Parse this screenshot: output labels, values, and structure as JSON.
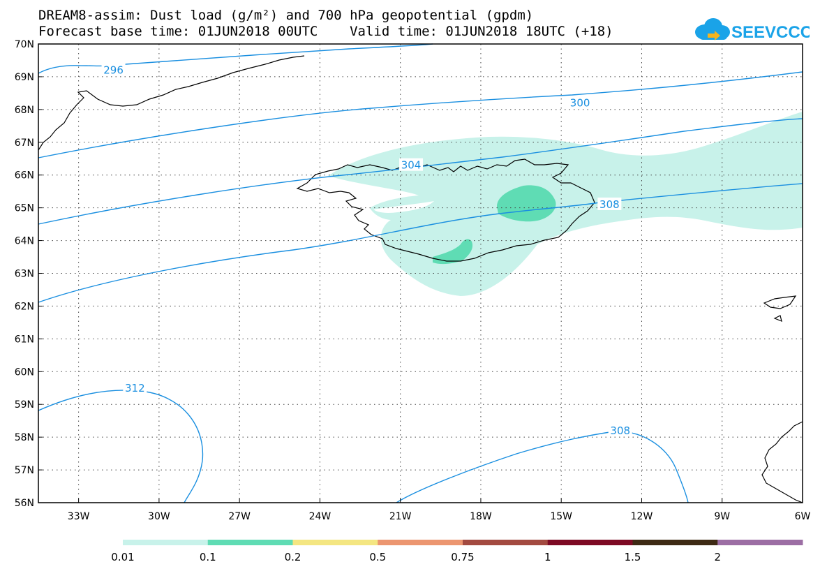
{
  "header": {
    "title_line1": "DREAM8-assim: Dust load (g/m²) and 700 hPa geopotential (gpdm)",
    "title_line2": "Forecast base time: 01JUN2018 00UTC    Valid time: 01JUN2018 18UTC (+18)"
  },
  "logo": {
    "text": "SEEVCCC",
    "color": "#1aa3e8"
  },
  "map": {
    "lon_range": [
      -34.5,
      -6
    ],
    "lat_range": [
      56,
      70
    ],
    "lon_ticks": [
      {
        "value": -33,
        "label": "33W"
      },
      {
        "value": -30,
        "label": "30W"
      },
      {
        "value": -27,
        "label": "27W"
      },
      {
        "value": -24,
        "label": "24W"
      },
      {
        "value": -21,
        "label": "21W"
      },
      {
        "value": -18,
        "label": "18W"
      },
      {
        "value": -15,
        "label": "15W"
      },
      {
        "value": -12,
        "label": "12W"
      },
      {
        "value": -9,
        "label": "9W"
      },
      {
        "value": -6,
        "label": "6W"
      }
    ],
    "lat_ticks": [
      {
        "value": 70,
        "label": "70N"
      },
      {
        "value": 69,
        "label": "69N"
      },
      {
        "value": 68,
        "label": "68N"
      },
      {
        "value": 67,
        "label": "67N"
      },
      {
        "value": 66,
        "label": "66N"
      },
      {
        "value": 65,
        "label": "65N"
      },
      {
        "value": 64,
        "label": "64N"
      },
      {
        "value": 63,
        "label": "63N"
      },
      {
        "value": 62,
        "label": "62N"
      },
      {
        "value": 61,
        "label": "61N"
      },
      {
        "value": 60,
        "label": "60N"
      },
      {
        "value": 59,
        "label": "59N"
      },
      {
        "value": 58,
        "label": "58N"
      },
      {
        "value": 57,
        "label": "57N"
      },
      {
        "value": 56,
        "label": "56N"
      }
    ],
    "contour_labels": [
      {
        "text": "296",
        "lon": -31.7,
        "lat": 69.2
      },
      {
        "text": "300",
        "lon": -14.3,
        "lat": 68.2
      },
      {
        "text": "304",
        "lon": -20.6,
        "lat": 66.3
      },
      {
        "text": "308",
        "lon": -13.2,
        "lat": 65.1
      },
      {
        "text": "312",
        "lon": -30.9,
        "lat": 59.5
      },
      {
        "text": "308",
        "lon": -12.8,
        "lat": 58.2
      }
    ],
    "contour_color": "#1a8fe0"
  },
  "colorbar": {
    "segments": [
      {
        "color": "#c8f2ea"
      },
      {
        "color": "#5fdcb4"
      },
      {
        "color": "#f4e682"
      },
      {
        "color": "#ec9670"
      },
      {
        "color": "#a34a40"
      },
      {
        "color": "#7d0a24"
      },
      {
        "color": "#3e2a14"
      },
      {
        "color": "#9c6ea4"
      }
    ],
    "labels": [
      "0.01",
      "0.1",
      "0.2",
      "0.5",
      "0.75",
      "1",
      "1.5",
      "2"
    ]
  }
}
